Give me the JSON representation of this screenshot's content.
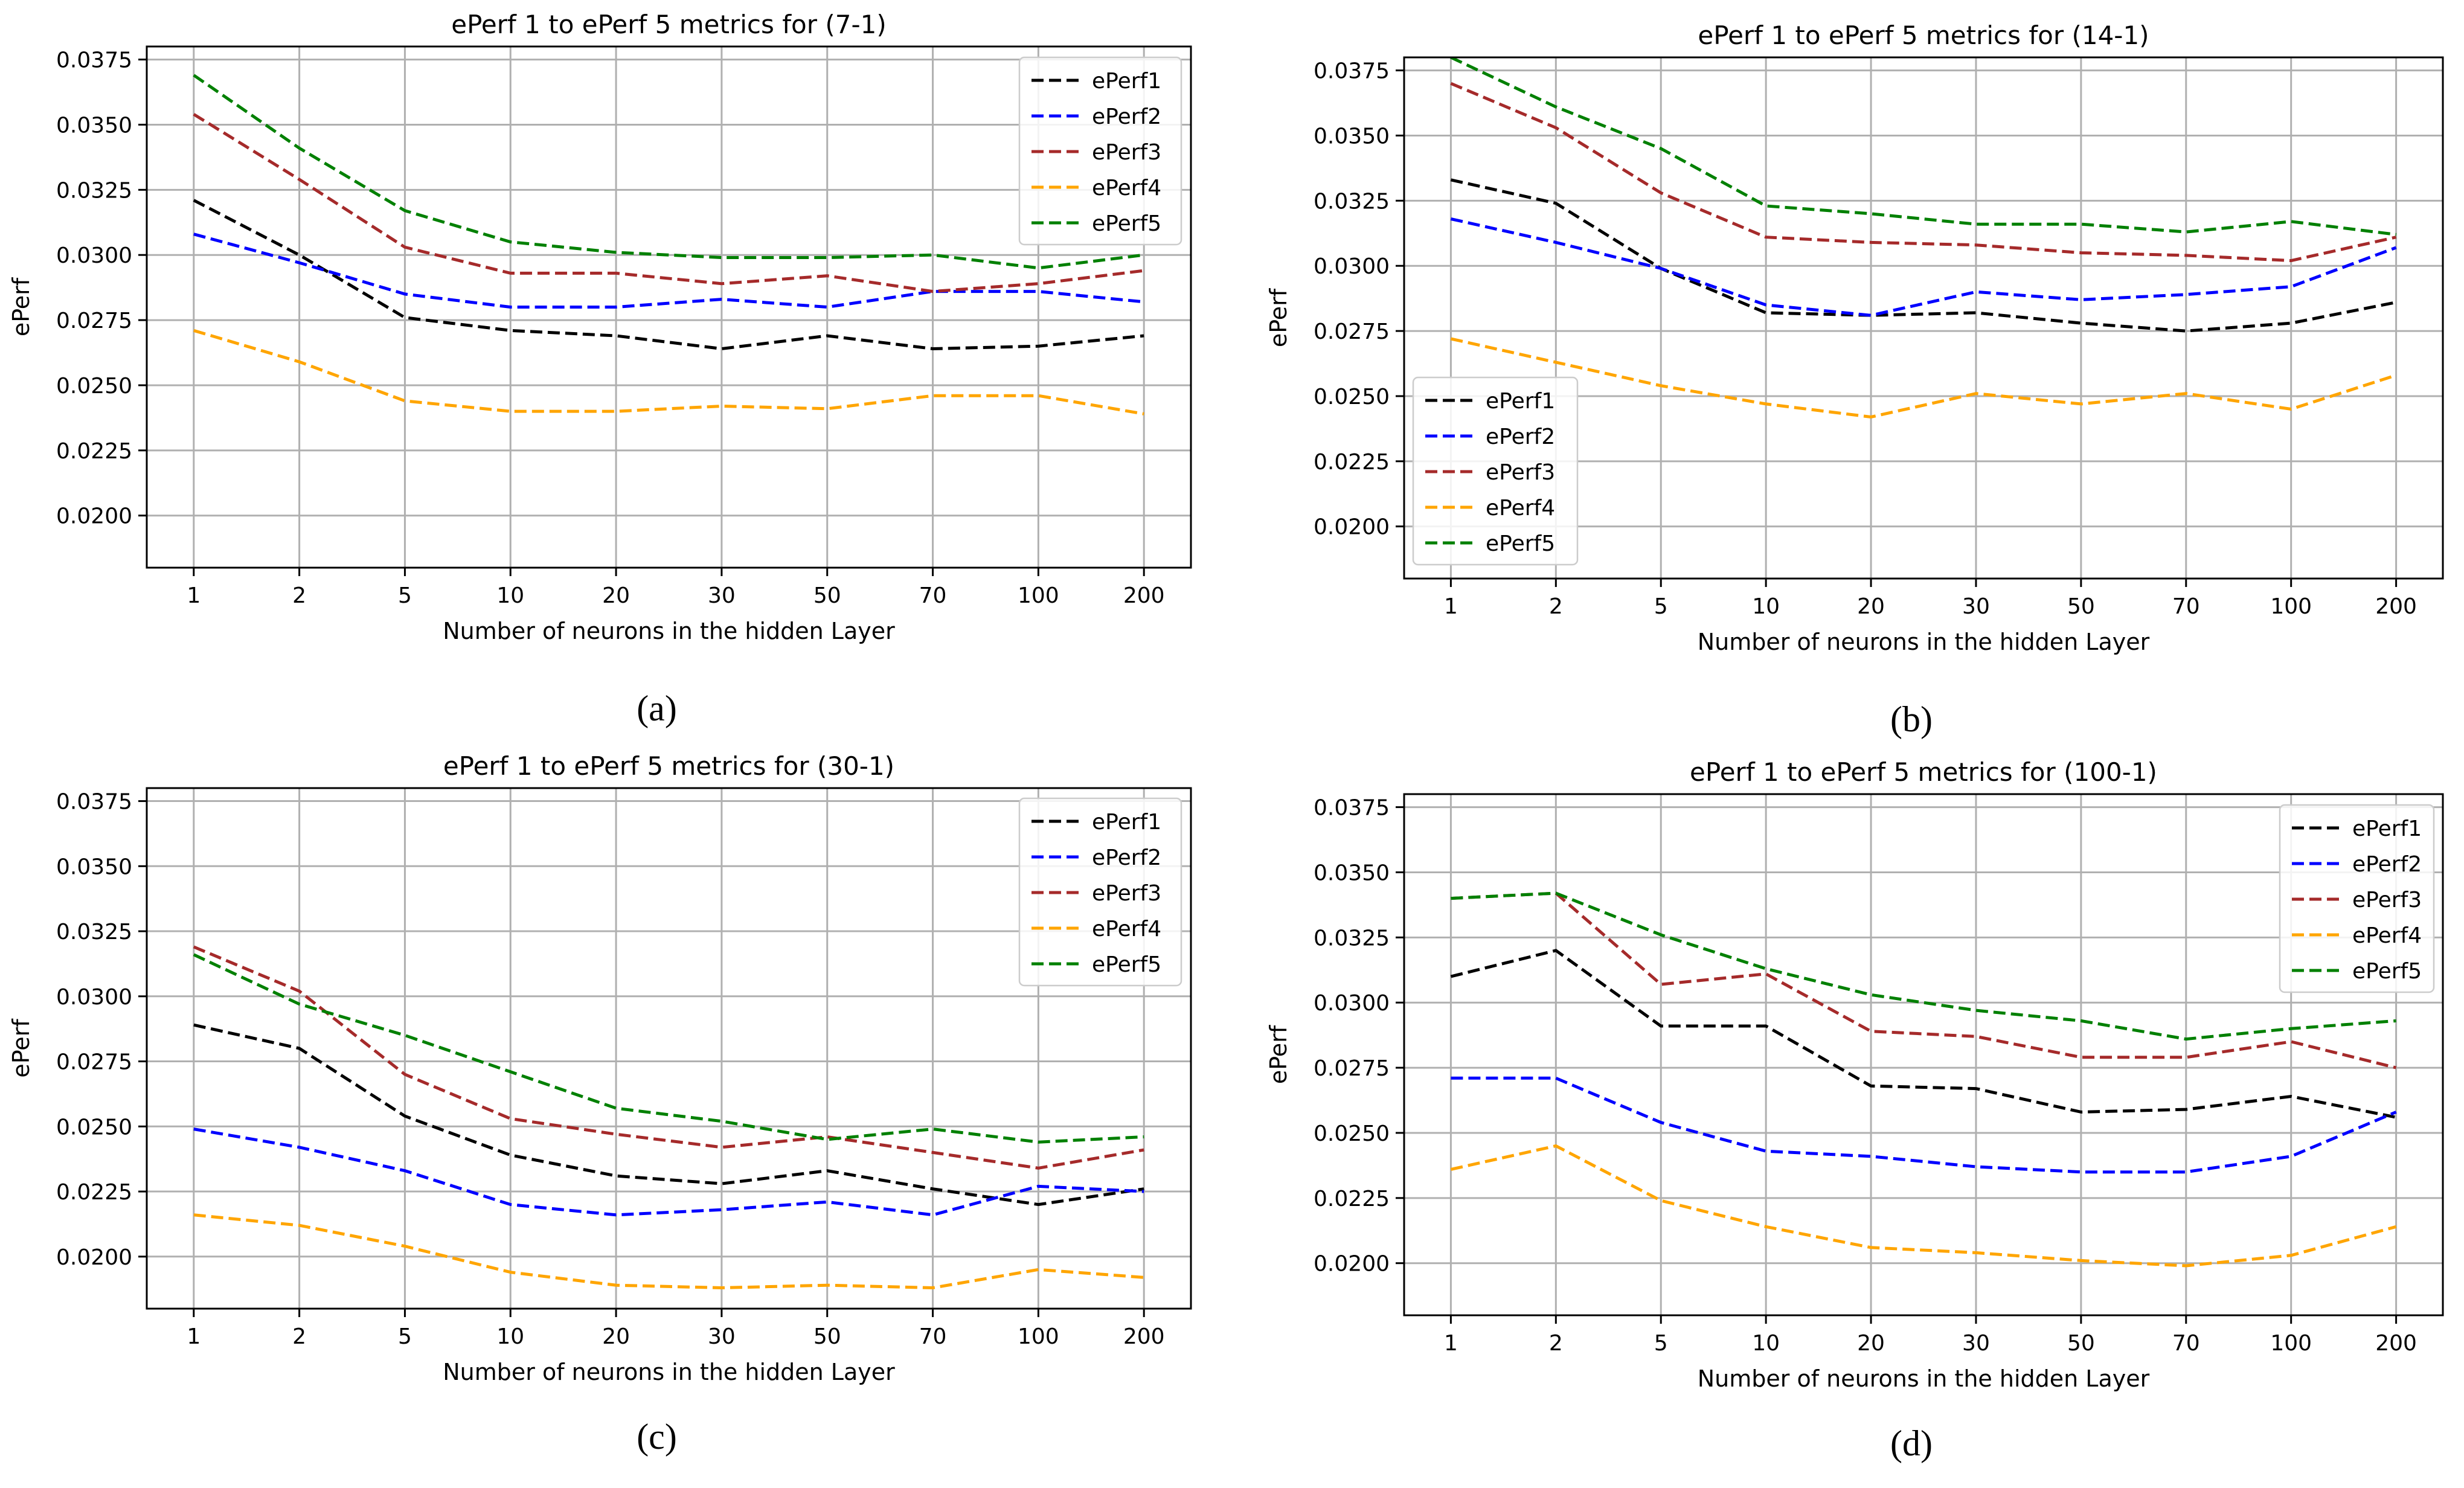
{
  "chart_data": [
    {
      "type": "line",
      "title": "ePerf 1 to ePerf 5 metrics for (7-1)",
      "caption": "(a)",
      "xlabel": "Number of neurons in the hidden Layer",
      "ylabel": "ePerf",
      "categories": [
        "1",
        "2",
        "5",
        "10",
        "20",
        "30",
        "50",
        "70",
        "100",
        "200"
      ],
      "ylim": [
        0.018,
        0.038
      ],
      "yticks": [
        "0.0200",
        "0.0225",
        "0.0250",
        "0.0275",
        "0.0300",
        "0.0325",
        "0.0350",
        "0.0375"
      ],
      "grid": true,
      "legend_position": "top-right",
      "series": [
        {
          "name": "ePerf1",
          "color": "#000000",
          "values": [
            0.0321,
            0.03,
            0.0276,
            0.0271,
            0.0269,
            0.0264,
            0.0269,
            0.0264,
            0.0265,
            0.0269
          ]
        },
        {
          "name": "ePerf2",
          "color": "#0000ff",
          "values": [
            0.0308,
            0.0297,
            0.0285,
            0.028,
            0.028,
            0.0283,
            0.028,
            0.0286,
            0.0286,
            0.0282
          ]
        },
        {
          "name": "ePerf3",
          "color": "#a52a2a",
          "values": [
            0.0354,
            0.0329,
            0.0303,
            0.0293,
            0.0293,
            0.0289,
            0.0292,
            0.0286,
            0.0289,
            0.0294
          ]
        },
        {
          "name": "ePerf4",
          "color": "#ffa500",
          "values": [
            0.0271,
            0.0259,
            0.0244,
            0.024,
            0.024,
            0.0242,
            0.0241,
            0.0246,
            0.0246,
            0.0239
          ]
        },
        {
          "name": "ePerf5",
          "color": "#008000",
          "values": [
            0.0369,
            0.0341,
            0.0317,
            0.0305,
            0.0301,
            0.0299,
            0.0299,
            0.03,
            0.0295,
            0.03
          ]
        }
      ]
    },
    {
      "type": "line",
      "title": "ePerf 1 to ePerf 5 metrics for (14-1)",
      "caption": "(b)",
      "xlabel": "Number of neurons in the hidden Layer",
      "ylabel": "ePerf",
      "categories": [
        "1",
        "2",
        "5",
        "10",
        "20",
        "30",
        "50",
        "70",
        "100",
        "200"
      ],
      "ylim": [
        0.018,
        0.038
      ],
      "yticks": [
        "0.0200",
        "0.0225",
        "0.0250",
        "0.0275",
        "0.0300",
        "0.0325",
        "0.0350",
        "0.0375"
      ],
      "grid": true,
      "legend_position": "lower-left",
      "series": [
        {
          "name": "ePerf1",
          "color": "#000000",
          "values": [
            0.0333,
            0.0324,
            0.0299,
            0.0282,
            0.0281,
            0.0282,
            0.0278,
            0.0275,
            0.0278,
            0.0286
          ]
        },
        {
          "name": "ePerf2",
          "color": "#0000ff",
          "values": [
            0.0318,
            0.0309,
            0.0299,
            0.0285,
            0.0281,
            0.029,
            0.0287,
            0.0289,
            0.0292,
            0.0307
          ]
        },
        {
          "name": "ePerf3",
          "color": "#a52a2a",
          "values": [
            0.037,
            0.0353,
            0.0328,
            0.0311,
            0.0309,
            0.0308,
            0.0305,
            0.0304,
            0.0302,
            0.0311
          ]
        },
        {
          "name": "ePerf4",
          "color": "#ffa500",
          "values": [
            0.0272,
            0.0263,
            0.0254,
            0.0247,
            0.0242,
            0.0251,
            0.0247,
            0.0251,
            0.0245,
            0.0258
          ]
        },
        {
          "name": "ePerf5",
          "color": "#008000",
          "values": [
            0.038,
            0.0361,
            0.0345,
            0.0323,
            0.032,
            0.0316,
            0.0316,
            0.0313,
            0.0317,
            0.0312
          ]
        }
      ]
    },
    {
      "type": "line",
      "title": "ePerf 1 to ePerf 5 metrics for (30-1)",
      "caption": "(c)",
      "xlabel": "Number of neurons in the hidden Layer",
      "ylabel": "ePerf",
      "categories": [
        "1",
        "2",
        "5",
        "10",
        "20",
        "30",
        "50",
        "70",
        "100",
        "200"
      ],
      "ylim": [
        0.018,
        0.038
      ],
      "yticks": [
        "0.0200",
        "0.0225",
        "0.0250",
        "0.0275",
        "0.0300",
        "0.0325",
        "0.0350",
        "0.0375"
      ],
      "grid": true,
      "legend_position": "top-right",
      "series": [
        {
          "name": "ePerf1",
          "color": "#000000",
          "values": [
            0.0289,
            0.028,
            0.0254,
            0.0239,
            0.0231,
            0.0228,
            0.0233,
            0.0226,
            0.022,
            0.0226
          ]
        },
        {
          "name": "ePerf2",
          "color": "#0000ff",
          "values": [
            0.0249,
            0.0242,
            0.0233,
            0.022,
            0.0216,
            0.0218,
            0.0221,
            0.0216,
            0.0227,
            0.0225
          ]
        },
        {
          "name": "ePerf3",
          "color": "#a52a2a",
          "values": [
            0.0319,
            0.0302,
            0.027,
            0.0253,
            0.0247,
            0.0242,
            0.0246,
            0.024,
            0.0234,
            0.0241
          ]
        },
        {
          "name": "ePerf4",
          "color": "#ffa500",
          "values": [
            0.0216,
            0.0212,
            0.0204,
            0.0194,
            0.0189,
            0.0188,
            0.0189,
            0.0188,
            0.0195,
            0.0192
          ]
        },
        {
          "name": "ePerf5",
          "color": "#008000",
          "values": [
            0.0316,
            0.0297,
            0.0285,
            0.0271,
            0.0257,
            0.0252,
            0.0245,
            0.0249,
            0.0244,
            0.0246
          ]
        }
      ]
    },
    {
      "type": "line",
      "title": "ePerf 1 to ePerf 5 metrics for (100-1)",
      "caption": "(d)",
      "xlabel": "Number of neurons in the hidden Layer",
      "ylabel": "ePerf",
      "categories": [
        "1",
        "2",
        "5",
        "10",
        "20",
        "30",
        "50",
        "70",
        "100",
        "200"
      ],
      "ylim": [
        0.018,
        0.038
      ],
      "yticks": [
        "0.0200",
        "0.0225",
        "0.0250",
        "0.0275",
        "0.0300",
        "0.0325",
        "0.0350",
        "0.0375"
      ],
      "grid": true,
      "legend_position": "top-right",
      "series": [
        {
          "name": "ePerf1",
          "color": "#000000",
          "values": [
            0.031,
            0.032,
            0.0291,
            0.0291,
            0.0268,
            0.0267,
            0.0258,
            0.0259,
            0.0264,
            0.0256
          ]
        },
        {
          "name": "ePerf2",
          "color": "#0000ff",
          "values": [
            0.0271,
            0.0271,
            0.0254,
            0.0243,
            0.0241,
            0.0237,
            0.0235,
            0.0235,
            0.0241,
            0.0258
          ]
        },
        {
          "name": "ePerf3",
          "color": "#a52a2a",
          "values": [
            0.034,
            0.0342,
            0.0307,
            0.0311,
            0.0289,
            0.0287,
            0.0279,
            0.0279,
            0.0285,
            0.0275
          ]
        },
        {
          "name": "ePerf4",
          "color": "#ffa500",
          "values": [
            0.0236,
            0.0245,
            0.0224,
            0.0214,
            0.0206,
            0.0204,
            0.0201,
            0.0199,
            0.0203,
            0.0214
          ]
        },
        {
          "name": "ePerf5",
          "color": "#008000",
          "values": [
            0.034,
            0.0342,
            0.0326,
            0.0313,
            0.0303,
            0.0297,
            0.0293,
            0.0286,
            0.029,
            0.0293
          ]
        }
      ]
    }
  ]
}
